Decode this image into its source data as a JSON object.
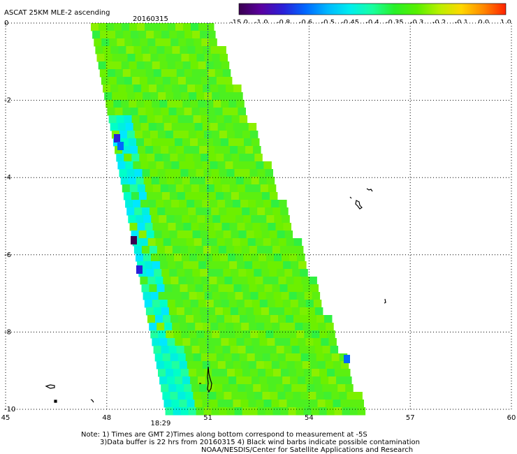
{
  "header": {
    "title": "ASCAT 25KM MLE-2 ascending",
    "date": "20160315"
  },
  "colorbar": {
    "labels": [
      "-15.0",
      "-1.0",
      "-0.8",
      "-0.6",
      "-0.5",
      "-0.45",
      "-0.4",
      "-0.35",
      "-0.3",
      "-0.2",
      "-0.1",
      "0.0",
      "1.0"
    ],
    "colors": [
      "#3a0050",
      "#5a00a0",
      "#2a20d8",
      "#0068ff",
      "#00b8ff",
      "#00eeee",
      "#18ffa0",
      "#28f028",
      "#58f000",
      "#b8f000",
      "#ffd800",
      "#ff8800",
      "#ff2200"
    ]
  },
  "axes": {
    "x_ticks": [
      45,
      48,
      51,
      54,
      57,
      60
    ],
    "y_ticks": [
      0,
      -2,
      -4,
      -6,
      -8,
      -10
    ],
    "x_range": [
      45,
      60
    ],
    "y_range": [
      -10,
      0
    ],
    "time_label": "18:29",
    "time_label_lon": 49.3,
    "time_label_color": "#cc2200",
    "grid": "dotted"
  },
  "notes": {
    "line1": "Note: 1) Times are GMT 2)Times along bottom correspond to measurement at -5S",
    "line2": "3)Data buffer is 22 hrs from 20160315 4) Black wind barbs indicate possible contamination",
    "line3": "NOAA/NESDIS/Center for Satellite Applications and Research"
  }
}
